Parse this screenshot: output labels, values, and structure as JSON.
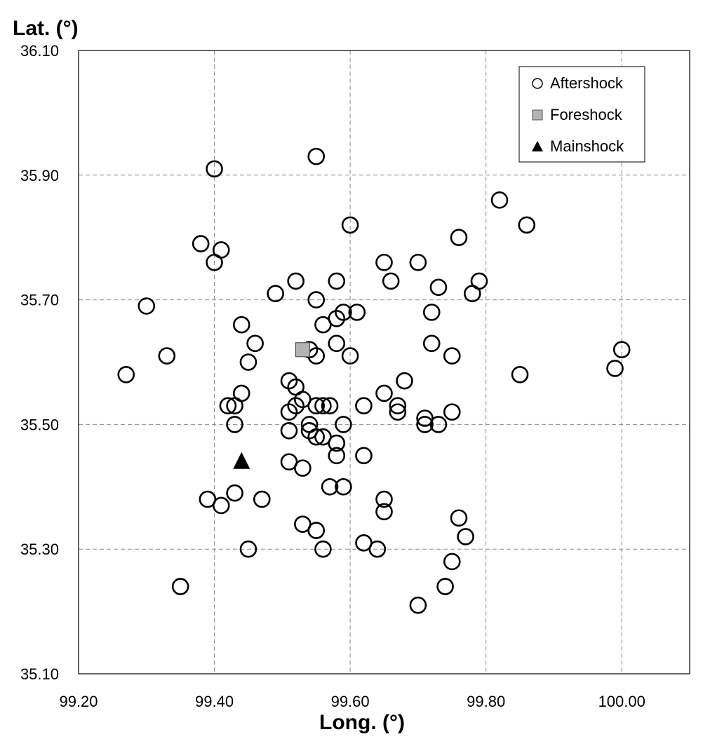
{
  "chart_data": {
    "type": "scatter",
    "xlabel": "Long. (°)",
    "ylabel": "Lat. (°)",
    "xlim": [
      99.2,
      100.1
    ],
    "ylim": [
      35.1,
      36.1
    ],
    "xticks": [
      "99.20",
      "99.40",
      "99.60",
      "99.80",
      "100.00"
    ],
    "yticks": [
      "35.10",
      "35.30",
      "35.50",
      "35.70",
      "35.90",
      "36.10"
    ],
    "grid": true,
    "legend_position": "top-right",
    "series": [
      {
        "name": "Aftershock",
        "marker": "open-circle",
        "color": "#000000",
        "points": [
          [
            99.55,
            35.93
          ],
          [
            99.4,
            35.91
          ],
          [
            99.82,
            35.86
          ],
          [
            99.86,
            35.82
          ],
          [
            99.6,
            35.82
          ],
          [
            99.76,
            35.8
          ],
          [
            99.38,
            35.79
          ],
          [
            99.41,
            35.78
          ],
          [
            99.4,
            35.76
          ],
          [
            99.65,
            35.76
          ],
          [
            99.7,
            35.76
          ],
          [
            99.52,
            35.73
          ],
          [
            99.58,
            35.73
          ],
          [
            99.66,
            35.73
          ],
          [
            99.79,
            35.73
          ],
          [
            99.73,
            35.72
          ],
          [
            99.49,
            35.71
          ],
          [
            99.78,
            35.71
          ],
          [
            99.55,
            35.7
          ],
          [
            99.3,
            35.69
          ],
          [
            99.59,
            35.68
          ],
          [
            99.61,
            35.68
          ],
          [
            99.72,
            35.68
          ],
          [
            99.58,
            35.67
          ],
          [
            99.44,
            35.66
          ],
          [
            99.56,
            35.66
          ],
          [
            99.46,
            35.63
          ],
          [
            99.58,
            35.63
          ],
          [
            99.72,
            35.63
          ],
          [
            100.0,
            35.62
          ],
          [
            99.54,
            35.62
          ],
          [
            99.33,
            35.61
          ],
          [
            99.55,
            35.61
          ],
          [
            99.6,
            35.61
          ],
          [
            99.75,
            35.61
          ],
          [
            99.45,
            35.6
          ],
          [
            99.99,
            35.59
          ],
          [
            99.27,
            35.58
          ],
          [
            99.85,
            35.58
          ],
          [
            99.51,
            35.57
          ],
          [
            99.68,
            35.57
          ],
          [
            99.52,
            35.56
          ],
          [
            99.44,
            35.55
          ],
          [
            99.65,
            35.55
          ],
          [
            99.53,
            35.54
          ],
          [
            99.42,
            35.53
          ],
          [
            99.43,
            35.53
          ],
          [
            99.52,
            35.53
          ],
          [
            99.55,
            35.53
          ],
          [
            99.56,
            35.53
          ],
          [
            99.57,
            35.53
          ],
          [
            99.62,
            35.53
          ],
          [
            99.67,
            35.53
          ],
          [
            99.51,
            35.52
          ],
          [
            99.67,
            35.52
          ],
          [
            99.75,
            35.52
          ],
          [
            99.71,
            35.51
          ],
          [
            99.43,
            35.5
          ],
          [
            99.54,
            35.5
          ],
          [
            99.59,
            35.5
          ],
          [
            99.71,
            35.5
          ],
          [
            99.73,
            35.5
          ],
          [
            99.51,
            35.49
          ],
          [
            99.54,
            35.49
          ],
          [
            99.55,
            35.48
          ],
          [
            99.56,
            35.48
          ],
          [
            99.58,
            35.47
          ],
          [
            99.58,
            35.45
          ],
          [
            99.62,
            35.45
          ],
          [
            99.51,
            35.44
          ],
          [
            99.53,
            35.43
          ],
          [
            99.57,
            35.4
          ],
          [
            99.59,
            35.4
          ],
          [
            99.43,
            35.39
          ],
          [
            99.39,
            35.38
          ],
          [
            99.47,
            35.38
          ],
          [
            99.65,
            35.38
          ],
          [
            99.41,
            35.37
          ],
          [
            99.65,
            35.36
          ],
          [
            99.76,
            35.35
          ],
          [
            99.53,
            35.34
          ],
          [
            99.55,
            35.33
          ],
          [
            99.77,
            35.32
          ],
          [
            99.62,
            35.31
          ],
          [
            99.45,
            35.3
          ],
          [
            99.56,
            35.3
          ],
          [
            99.64,
            35.3
          ],
          [
            99.75,
            35.28
          ],
          [
            99.35,
            35.24
          ],
          [
            99.74,
            35.24
          ],
          [
            99.7,
            35.21
          ]
        ]
      },
      {
        "name": "Foreshock",
        "marker": "gray-square",
        "color": "#b3b3b3",
        "points": [
          [
            99.53,
            35.62
          ]
        ]
      },
      {
        "name": "Mainshock",
        "marker": "filled-triangle",
        "color": "#000000",
        "points": [
          [
            99.44,
            35.44
          ]
        ]
      }
    ]
  }
}
